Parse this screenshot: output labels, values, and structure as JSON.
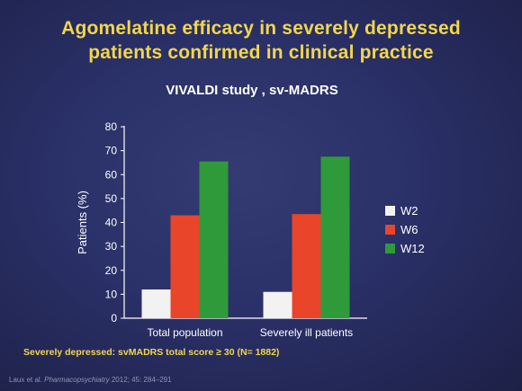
{
  "title_line1": "Agomelatine efficacy in severely depressed",
  "title_line2": "patients confirmed in clinical practice",
  "footnote": "Severely depressed: svMADRS total score ≥ 30 (N= 1882)",
  "citation": {
    "authors": "Laux et al. ",
    "journal": "Pharmacopsychiatry",
    "details": " 2012; 45: 284–291"
  },
  "colors": {
    "W2": "#f2f2f2",
    "W6": "#e9452a",
    "W12": "#2f9a3a"
  },
  "chart_data": {
    "type": "bar",
    "title": "VIVALDI study , sv-MADRS",
    "ylabel": "Patients (%)",
    "xlabel": "",
    "ylim": [
      0,
      80
    ],
    "yticks": [
      0,
      10,
      20,
      30,
      40,
      50,
      60,
      70,
      80
    ],
    "categories": [
      "Total population",
      "Severely ill patients"
    ],
    "series": [
      {
        "name": "W2",
        "values": [
          12,
          11
        ]
      },
      {
        "name": "W6",
        "values": [
          43,
          43.5
        ]
      },
      {
        "name": "W12",
        "values": [
          65.5,
          67.5
        ]
      }
    ],
    "legend_position": "right",
    "grid": false
  }
}
